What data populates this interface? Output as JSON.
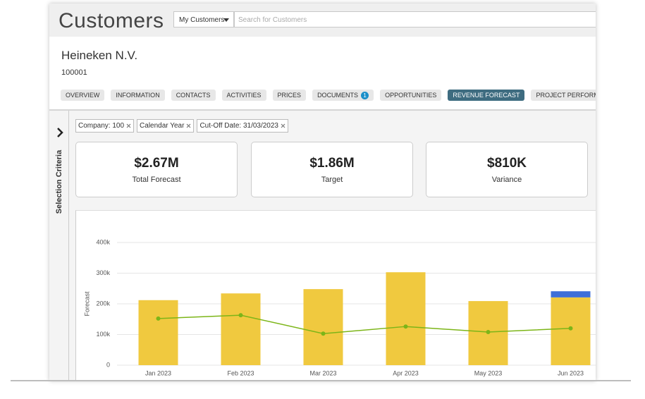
{
  "header": {
    "title": "Customers",
    "filter": "My Customers",
    "search_placeholder": "Search for Customers"
  },
  "company": {
    "name": "Heineken N.V.",
    "id": "100001"
  },
  "tabs": [
    {
      "label": "OVERVIEW"
    },
    {
      "label": "INFORMATION"
    },
    {
      "label": "CONTACTS"
    },
    {
      "label": "ACTIVITIES"
    },
    {
      "label": "PRICES"
    },
    {
      "label": "DOCUMENTS",
      "badge": 1
    },
    {
      "label": "OPPORTUNITIES"
    },
    {
      "label": "REVENUE FORECAST",
      "active": true
    },
    {
      "label": "PROJECT PERFORMANCE"
    }
  ],
  "sidebar_label": "Selection Criteria",
  "filters": [
    "Company: 100",
    "Calendar Year",
    "Cut-Off Date: 31/03/2023"
  ],
  "kpis": [
    {
      "value": "$2.67M",
      "label": "Total Forecast"
    },
    {
      "value": "$1.86M",
      "label": "Target"
    },
    {
      "value": "$810K",
      "label": "Variance"
    }
  ],
  "chart_data": {
    "type": "bar",
    "y_label": "Forecast",
    "categories": [
      "Jan 2023",
      "Feb 2023",
      "Mar 2023",
      "Apr 2023",
      "May 2023",
      "Jun 2023"
    ],
    "series": [
      {
        "type": "bar",
        "color": "#f0c93f",
        "values": [
          212000,
          234000,
          248000,
          303000,
          209000,
          221000
        ]
      },
      {
        "type": "bar",
        "color": "#3f6fd8",
        "values": [
          null,
          null,
          null,
          null,
          null,
          20000
        ]
      },
      {
        "type": "line",
        "color": "#7cb518",
        "values": [
          152000,
          163000,
          103000,
          126000,
          108000,
          120000
        ]
      }
    ],
    "ylim": [
      0,
      400000
    ],
    "yticks": [
      0,
      {
        "value": 100000,
        "label": "100k"
      },
      {
        "value": 200000,
        "label": "200k"
      },
      {
        "value": 300000,
        "label": "300k"
      },
      {
        "value": 400000,
        "label": "400k"
      }
    ],
    "grid": true
  }
}
